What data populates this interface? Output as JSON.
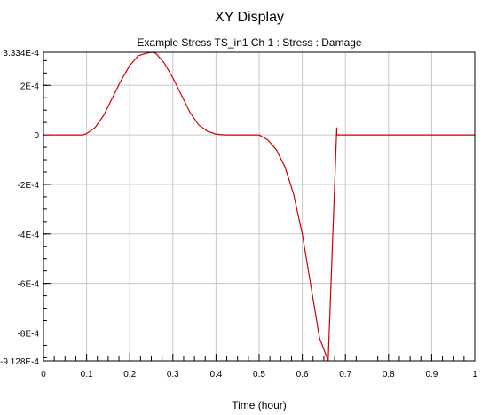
{
  "window_title": "XY Display",
  "chart_data": {
    "type": "line",
    "title": "Example Stress TS_in1  Ch 1 : Stress : Damage",
    "xlabel": "Time (hour)",
    "ylabel": "",
    "xlim": [
      0,
      1
    ],
    "ylim": [
      -0.0009128,
      0.0003334
    ],
    "grid": true,
    "line_color": "#cc0000",
    "grid_color": "#c8c8c8",
    "x_ticks": [
      {
        "value": 0,
        "label": "0"
      },
      {
        "value": 0.1,
        "label": "0.1"
      },
      {
        "value": 0.2,
        "label": "0.2"
      },
      {
        "value": 0.3,
        "label": "0.3"
      },
      {
        "value": 0.4,
        "label": "0.4"
      },
      {
        "value": 0.5,
        "label": "0.5"
      },
      {
        "value": 0.6,
        "label": "0.6"
      },
      {
        "value": 0.7,
        "label": "0.7"
      },
      {
        "value": 0.8,
        "label": "0.8"
      },
      {
        "value": 0.9,
        "label": "0.9"
      },
      {
        "value": 1,
        "label": "1"
      }
    ],
    "y_ticks": [
      {
        "value": 0.0003334,
        "label": "3.334E-4"
      },
      {
        "value": 0.0002,
        "label": "2E-4"
      },
      {
        "value": 0,
        "label": "0"
      },
      {
        "value": -0.0002,
        "label": "-2E-4"
      },
      {
        "value": -0.0004,
        "label": "-4E-4"
      },
      {
        "value": -0.0006,
        "label": "-6E-4"
      },
      {
        "value": -0.0008,
        "label": "-8E-4"
      },
      {
        "value": -0.0009128,
        "label": "-9.128E-4"
      }
    ],
    "series": [
      {
        "x": [
          0,
          0.09,
          0.1,
          0.12,
          0.14,
          0.16,
          0.18,
          0.2,
          0.22,
          0.24,
          0.25,
          0.26,
          0.28,
          0.3,
          0.32,
          0.34,
          0.36,
          0.38,
          0.4,
          0.42,
          0.44,
          0.5,
          0.52,
          0.54,
          0.56,
          0.58,
          0.6,
          0.62,
          0.64,
          0.66,
          0.68,
          0.68,
          1.0
        ],
        "y": [
          0,
          0,
          5e-06,
          3e-05,
          8e-05,
          0.00015,
          0.00022,
          0.00028,
          0.00032,
          0.00033,
          0.0003334,
          0.00033,
          0.00029,
          0.00023,
          0.00016,
          9e-05,
          4e-05,
          1.5e-05,
          3e-06,
          0,
          0,
          0,
          -2e-05,
          -6e-05,
          -0.00013,
          -0.00024,
          -0.0004,
          -0.00061,
          -0.00082,
          -0.0009128,
          3e-05,
          0,
          0
        ]
      }
    ]
  }
}
